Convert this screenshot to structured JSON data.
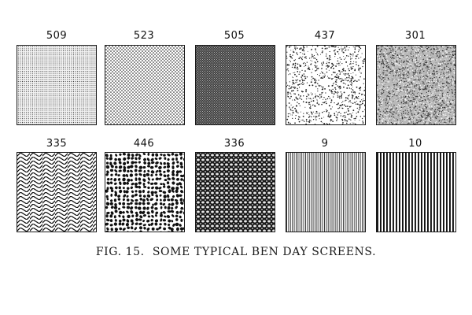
{
  "screens": [
    {
      "number": "509",
      "pattern": "fine-dots"
    },
    {
      "number": "523",
      "pattern": "medium-dots"
    },
    {
      "number": "505",
      "pattern": "crosshatch-dark"
    },
    {
      "number": "437",
      "pattern": "stipple-sparse"
    },
    {
      "number": "301",
      "pattern": "stipple-dense"
    },
    {
      "number": "335",
      "pattern": "herringbone"
    },
    {
      "number": "446",
      "pattern": "irregular-cells"
    },
    {
      "number": "336",
      "pattern": "mesh-lattice"
    },
    {
      "number": "9",
      "pattern": "fine-vertical-lines"
    },
    {
      "number": "10",
      "pattern": "bold-vertical-lines"
    }
  ],
  "caption": "FIG. 15.  SOME TYPICAL BEN DAY SCREENS."
}
